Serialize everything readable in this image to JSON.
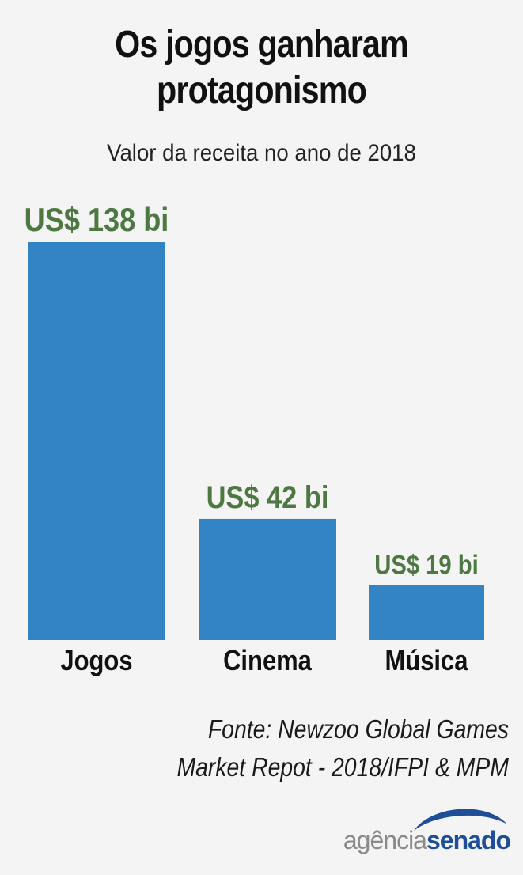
{
  "title_line1": "Os jogos ganharam",
  "title_line2": "protagonismo",
  "subtitle": "Valor da receita no ano de 2018",
  "source_line1": "Fonte: Newzoo Global Games",
  "source_line2": "Market Repot - 2018/IFPI & MPM",
  "logo": {
    "part1": "agência",
    "part2": "senado"
  },
  "colors": {
    "bar": "#3384c5",
    "value_label": "#4d7842",
    "text": "#111111",
    "logo_blue": "#1f4e99",
    "logo_gray": "#8a8a8a"
  },
  "chart_data": {
    "type": "bar",
    "title": "Os jogos ganharam protagonismo",
    "subtitle": "Valor da receita no ano de 2018",
    "categories": [
      "Jogos",
      "Cinema",
      "Música"
    ],
    "values": [
      138,
      42,
      19
    ],
    "data_labels": [
      "US$ 138 bi",
      "US$ 42 bi",
      "US$ 19 bi"
    ],
    "xlabel": "",
    "ylabel": "",
    "ylim": [
      0,
      138
    ],
    "grid": false,
    "unit": "US$ bi"
  }
}
